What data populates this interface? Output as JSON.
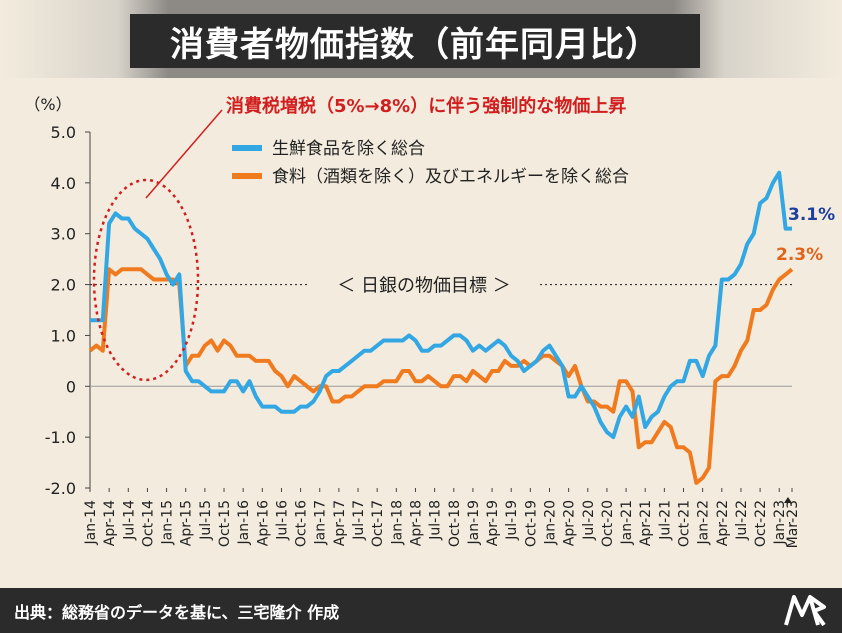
{
  "title": "消費者物価指数（前年同月比）",
  "source": "出典：総務省のデータを基に、三宅隆介 作成",
  "logo_text": "Mk",
  "chart_data": {
    "type": "line",
    "yunit": "（%）",
    "ylim": [
      -2.0,
      5.0
    ],
    "yticks": [
      "5.0",
      "4.0",
      "3.0",
      "2.0",
      "1.0",
      "0",
      "-1.0",
      "-2.0"
    ],
    "tick_labels": [
      "Jan-14",
      "Apr-14",
      "Jul-14",
      "Oct-14",
      "Jan-15",
      "Apr-15",
      "Jul-15",
      "Oct-15",
      "Jan-16",
      "Apr-16",
      "Jul-16",
      "Oct-16",
      "Jan-17",
      "Apr-17",
      "Jul-17",
      "Oct-17",
      "Jan-18",
      "Apr-18",
      "Jul-18",
      "Oct-18",
      "Jan-19",
      "Apr-19",
      "Jul-19",
      "Oct-19",
      "Jan-20",
      "Apr-20",
      "Jul-20",
      "Oct-20",
      "Jan-21",
      "Apr-21",
      "Jul-21",
      "Oct-21",
      "Jan-22",
      "Apr-22",
      "Jul-22",
      "Oct-22",
      "Jan-23",
      "Mar-23"
    ],
    "target_label": "＜ 日銀の物価目標 ＞",
    "target_value": 2.0,
    "annotation": "消費税増税（5%→8%）に伴う強制的な物価上昇",
    "end_labels": [
      "3.1%",
      "2.3%"
    ],
    "series": [
      {
        "name": "生鮮食品を除く総合",
        "color": "#33a7e4",
        "values": [
          1.3,
          1.3,
          1.3,
          3.2,
          3.4,
          3.3,
          3.3,
          3.1,
          3.0,
          2.9,
          2.7,
          2.5,
          2.2,
          2.0,
          2.2,
          0.3,
          0.1,
          0.1,
          0.0,
          -0.1,
          -0.1,
          -0.1,
          0.1,
          0.1,
          -0.1,
          0.1,
          -0.2,
          -0.4,
          -0.4,
          -0.4,
          -0.5,
          -0.5,
          -0.5,
          -0.4,
          -0.4,
          -0.3,
          -0.1,
          0.2,
          0.3,
          0.3,
          0.4,
          0.5,
          0.6,
          0.7,
          0.7,
          0.8,
          0.9,
          0.9,
          0.9,
          0.9,
          1.0,
          0.9,
          0.7,
          0.7,
          0.8,
          0.8,
          0.9,
          1.0,
          1.0,
          0.9,
          0.7,
          0.8,
          0.7,
          0.8,
          0.9,
          0.8,
          0.6,
          0.5,
          0.3,
          0.4,
          0.5,
          0.7,
          0.8,
          0.6,
          0.4,
          -0.2,
          -0.2,
          0.0,
          -0.2,
          -0.4,
          -0.7,
          -0.9,
          -1.0,
          -0.6,
          -0.4,
          -0.6,
          -0.2,
          -0.8,
          -0.6,
          -0.5,
          -0.2,
          0.0,
          0.1,
          0.1,
          0.5,
          0.5,
          0.2,
          0.6,
          0.8,
          2.1,
          2.1,
          2.2,
          2.4,
          2.8,
          3.0,
          3.6,
          3.7,
          4.0,
          4.2,
          3.1,
          3.1
        ]
      },
      {
        "name": "食料（酒類を除く）及びエネルギーを除く総合",
        "color": "#f07a1e",
        "values": [
          0.7,
          0.8,
          0.7,
          2.3,
          2.2,
          2.3,
          2.3,
          2.3,
          2.3,
          2.2,
          2.1,
          2.1,
          2.1,
          2.1,
          2.0,
          0.4,
          0.6,
          0.6,
          0.8,
          0.9,
          0.7,
          0.9,
          0.8,
          0.6,
          0.6,
          0.6,
          0.5,
          0.5,
          0.5,
          0.3,
          0.2,
          0.0,
          0.2,
          0.1,
          0.0,
          -0.1,
          0.0,
          0.0,
          -0.3,
          -0.3,
          -0.2,
          -0.2,
          -0.1,
          0.0,
          0.0,
          0.0,
          0.1,
          0.1,
          0.1,
          0.3,
          0.3,
          0.1,
          0.1,
          0.2,
          0.1,
          0.0,
          0.0,
          0.2,
          0.2,
          0.1,
          0.3,
          0.2,
          0.1,
          0.3,
          0.3,
          0.5,
          0.4,
          0.4,
          0.5,
          0.4,
          0.5,
          0.6,
          0.6,
          0.5,
          0.4,
          0.2,
          0.4,
          0.0,
          -0.3,
          -0.3,
          -0.4,
          -0.4,
          -0.5,
          0.1,
          0.1,
          -0.1,
          -1.2,
          -1.1,
          -1.1,
          -0.9,
          -0.7,
          -0.8,
          -1.2,
          -1.2,
          -1.3,
          -1.9,
          -1.8,
          -1.6,
          0.1,
          0.2,
          0.2,
          0.4,
          0.7,
          0.9,
          1.5,
          1.5,
          1.6,
          1.9,
          2.1,
          2.2,
          2.3
        ]
      }
    ]
  }
}
